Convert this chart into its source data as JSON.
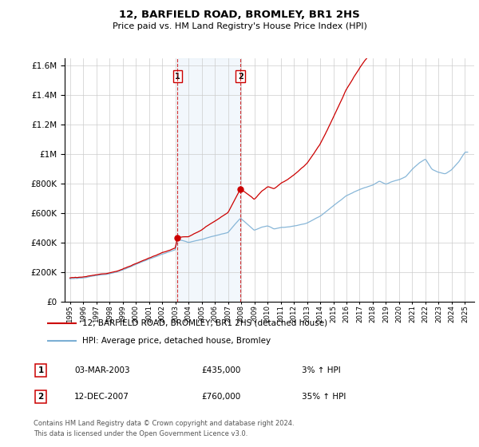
{
  "title": "12, BARFIELD ROAD, BROMLEY, BR1 2HS",
  "subtitle": "Price paid vs. HM Land Registry's House Price Index (HPI)",
  "legend_line1": "12, BARFIELD ROAD, BROMLEY, BR1 2HS (detached house)",
  "legend_line2": "HPI: Average price, detached house, Bromley",
  "footer1": "Contains HM Land Registry data © Crown copyright and database right 2024.",
  "footer2": "This data is licensed under the Open Government Licence v3.0.",
  "table": [
    {
      "num": "1",
      "date": "03-MAR-2003",
      "price": "£435,000",
      "change": "3% ↑ HPI"
    },
    {
      "num": "2",
      "date": "12-DEC-2007",
      "price": "£760,000",
      "change": "35% ↑ HPI"
    }
  ],
  "sale1_year": 2003.17,
  "sale1_price": 435000,
  "sale2_year": 2007.95,
  "sale2_price": 760000,
  "hpi_color": "#7bafd4",
  "price_color": "#cc0000",
  "shade_color": "#ddeeff",
  "ylim": [
    0,
    1600000
  ],
  "bg_color": "#f8f8f8"
}
